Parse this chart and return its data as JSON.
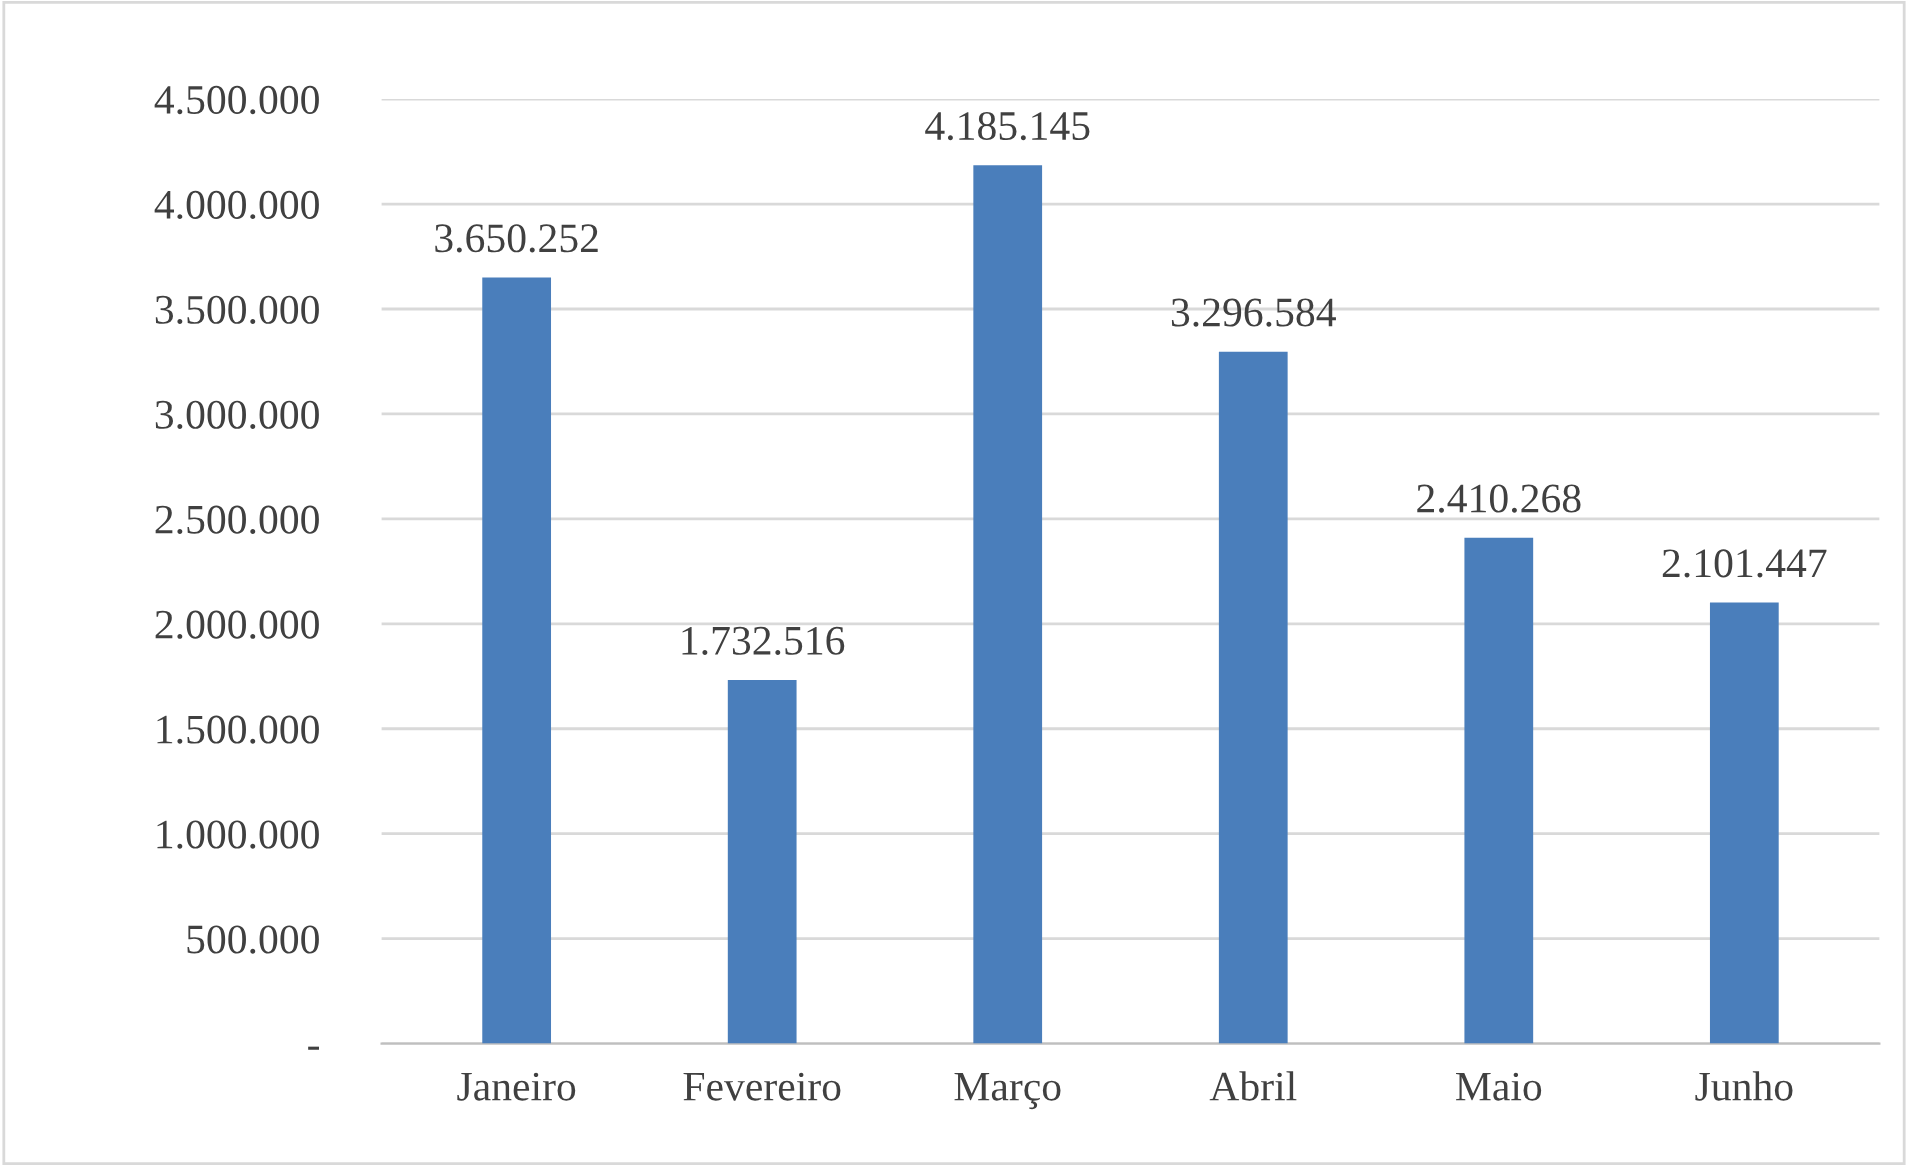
{
  "chart_data": {
    "type": "bar",
    "categories": [
      "Janeiro",
      "Fevereiro",
      "Março",
      "Abril",
      "Maio",
      "Junho"
    ],
    "values": [
      3650252,
      1732516,
      4185145,
      3296584,
      2410268,
      2101447
    ],
    "value_labels": [
      "3.650.252",
      "1.732.516",
      "4.185.145",
      "3.296.584",
      "2.410.268",
      "2.101.447"
    ],
    "color": "#4a7ebb",
    "ylim": [
      0,
      4500000
    ],
    "yticks": [
      {
        "value": 0,
        "label": "-"
      },
      {
        "value": 500000,
        "label": "500.000"
      },
      {
        "value": 1000000,
        "label": "1.000.000"
      },
      {
        "value": 1500000,
        "label": "1.500.000"
      },
      {
        "value": 2000000,
        "label": "2.000.000"
      },
      {
        "value": 2500000,
        "label": "2.500.000"
      },
      {
        "value": 3000000,
        "label": "3.000.000"
      },
      {
        "value": 3500000,
        "label": "3.500.000"
      },
      {
        "value": 4000000,
        "label": "4.000.000"
      },
      {
        "value": 4500000,
        "label": "4.500.000"
      }
    ],
    "grid": "y"
  }
}
